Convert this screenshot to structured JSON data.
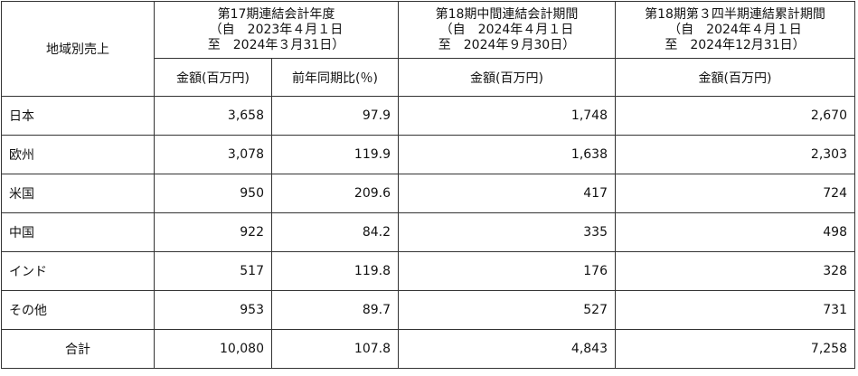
{
  "header": {
    "region": "地域別売上",
    "periods": [
      {
        "title": "第17期連結会計年度",
        "from": "（自　2023年４月１日",
        "to": "至　2024年３月31日）"
      },
      {
        "title": "第18期中間連結会計期間",
        "from": "（自　2024年４月１日",
        "to": "至　2024年９月30日）"
      },
      {
        "title": "第18期第３四半期連結累計期間",
        "from": "（自　2024年４月１日",
        "to": "至　2024年12月31日）"
      }
    ],
    "subheaders": [
      "金額(百万円)",
      "前年同期比(％)",
      "金額(百万円)",
      "金額(百万円)"
    ]
  },
  "table": {
    "rows": [
      [
        "日本",
        "3,658",
        "97.9",
        "1,748",
        "2,670"
      ],
      [
        "欧州",
        "3,078",
        "119.9",
        "1,638",
        "2,303"
      ],
      [
        "米国",
        "950",
        "209.6",
        "417",
        "724"
      ],
      [
        "中国",
        "922",
        "84.2",
        "335",
        "498"
      ],
      [
        "インド",
        "517",
        "119.8",
        "176",
        "328"
      ],
      [
        "その他",
        "953",
        "89.7",
        "527",
        "731"
      ],
      [
        "合計",
        "10,080",
        "107.8",
        "4,843",
        "7,258"
      ]
    ]
  }
}
